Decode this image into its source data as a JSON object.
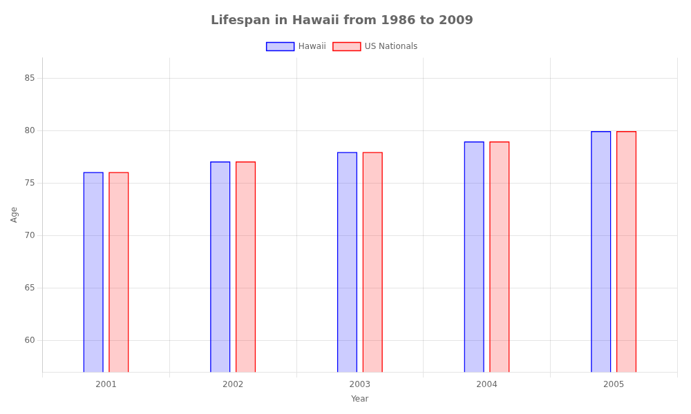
{
  "chart_data": {
    "type": "bar",
    "title": "Lifespan in Hawaii from 1986 to 2009",
    "xlabel": "Year",
    "ylabel": "Age",
    "categories": [
      2001,
      2002,
      2003,
      2004,
      2005
    ],
    "series": [
      {
        "name": "Hawaii",
        "color": "#0000ff",
        "values": [
          76.1,
          77.1,
          78.0,
          79.0,
          80.0
        ]
      },
      {
        "name": "US Nationals",
        "color": "#ff0000",
        "values": [
          76.1,
          77.1,
          78.0,
          79.0,
          80.0
        ]
      }
    ],
    "ylim": [
      57,
      87
    ],
    "yticks": [
      60,
      65,
      70,
      75,
      80,
      85
    ],
    "grid": true,
    "legend": "top"
  }
}
